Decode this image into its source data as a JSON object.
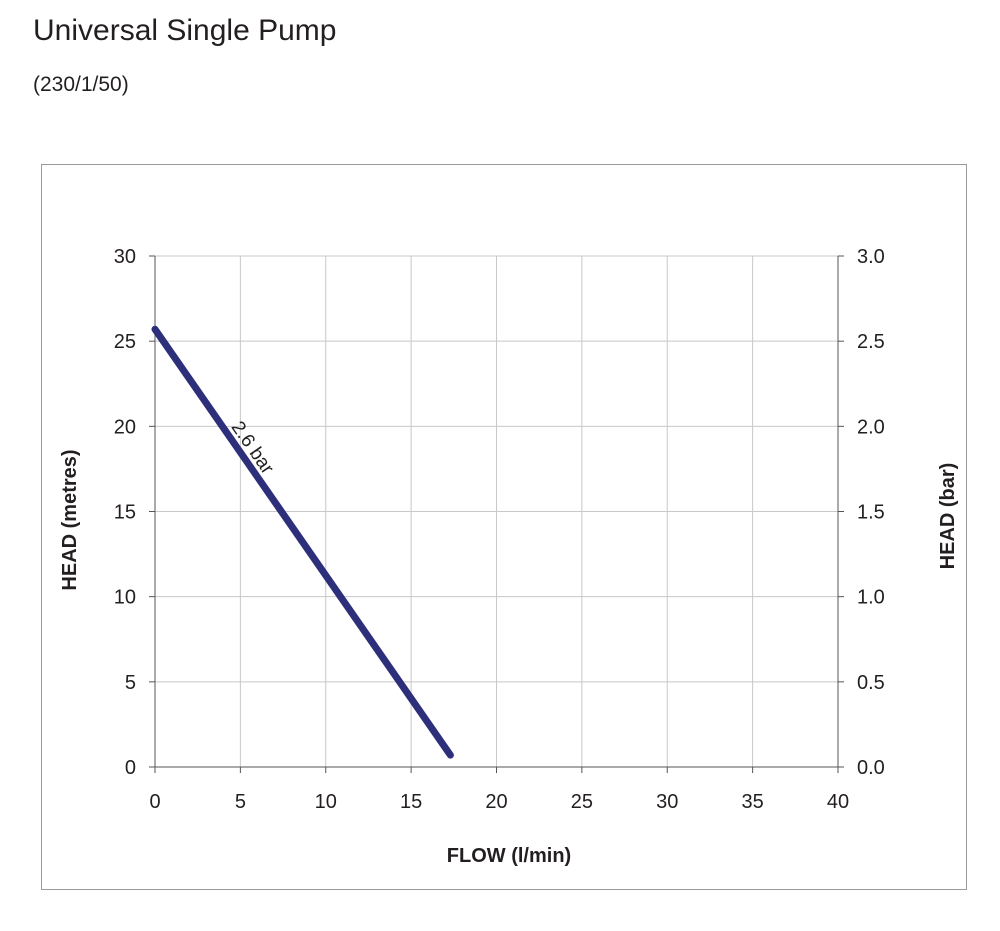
{
  "page": {
    "title": "Universal Single Pump",
    "subtitle": "(230/1/50)"
  },
  "chart_data": {
    "type": "line",
    "xlabel": "FLOW (l/min)",
    "ylabel": "HEAD (metres)",
    "y2label": "HEAD (bar)",
    "xlim": [
      0,
      40
    ],
    "ylim": [
      0,
      30
    ],
    "y2lim": [
      0.0,
      3.0
    ],
    "xticks": [
      "0",
      "5",
      "10",
      "15",
      "20",
      "25",
      "30",
      "35",
      "40"
    ],
    "yticks": [
      "0",
      "5",
      "10",
      "15",
      "20",
      "25",
      "30"
    ],
    "y2ticks": [
      "0.0",
      "0.5",
      "1.0",
      "1.5",
      "2.0",
      "2.5",
      "3.0"
    ],
    "grid": true,
    "series": [
      {
        "name": "2.6 bar",
        "color": "#2e2f7a",
        "x": [
          0,
          17.3
        ],
        "y": [
          25.7,
          0.7
        ]
      }
    ]
  }
}
